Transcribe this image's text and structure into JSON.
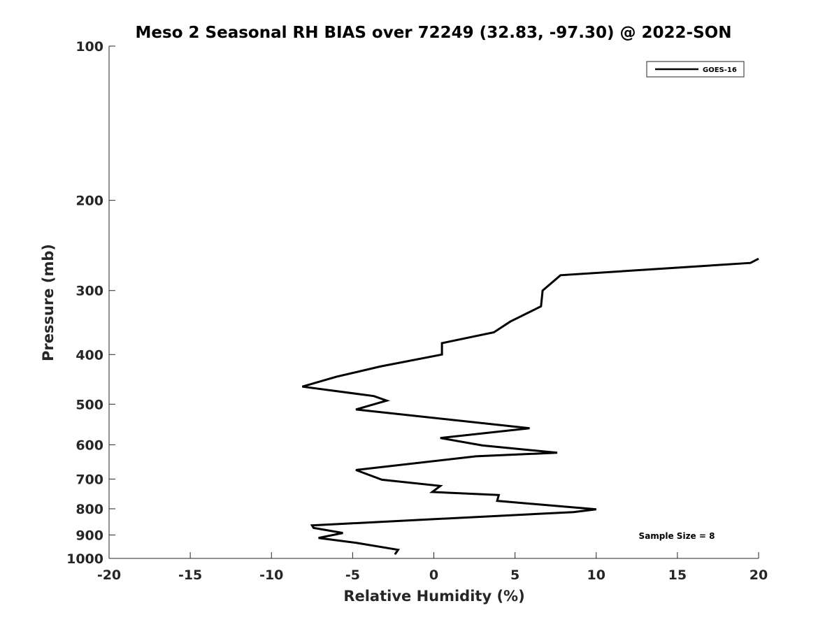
{
  "chart_data": {
    "type": "line",
    "title": "Meso 2 Seasonal RH BIAS over 72249 (32.83, -97.30) @ 2022-SON",
    "xlabel": "Relative Humidity (%)",
    "ylabel": "Pressure (mb)",
    "xlim": [
      -20,
      20
    ],
    "ylim": [
      1000,
      100
    ],
    "yscale": "log",
    "xticks": [
      -20,
      -15,
      -10,
      -5,
      0,
      5,
      10,
      15,
      20
    ],
    "xtick_labels": [
      "-20",
      "-15",
      "-10",
      "-5",
      "0",
      "5",
      "10",
      "15",
      "20"
    ],
    "yticks": [
      100,
      200,
      300,
      400,
      500,
      600,
      700,
      800,
      900,
      1000
    ],
    "ytick_labels": [
      "100",
      "200",
      "300",
      "400",
      "500",
      "600",
      "700",
      "800",
      "900",
      "1000"
    ],
    "grid": false,
    "legend_position": "top-right",
    "annotation": "Sample Size = 8",
    "series": [
      {
        "name": "GOES-16",
        "color": "#000000",
        "x": [
          20.0,
          19.5,
          7.8,
          6.7,
          6.6,
          4.7,
          3.7,
          0.5,
          0.5,
          -3.3,
          -6.0,
          -8.1,
          -3.7,
          -2.9,
          -4.8,
          5.9,
          0.4,
          3.0,
          7.6,
          2.6,
          -4.8,
          -3.2,
          0.4,
          -0.1,
          4.0,
          3.9,
          10.0,
          8.6,
          -7.5,
          -7.4,
          -5.6,
          -7.1,
          -4.8,
          -2.2,
          -2.4
        ],
        "y": [
          260,
          265,
          280,
          300,
          322,
          345,
          362,
          380,
          400,
          422,
          442,
          462,
          482,
          492,
          512,
          557,
          582,
          602,
          622,
          632,
          672,
          702,
          722,
          742,
          752,
          772,
          802,
          812,
          862,
          872,
          892,
          912,
          932,
          962,
          982
        ]
      }
    ]
  }
}
